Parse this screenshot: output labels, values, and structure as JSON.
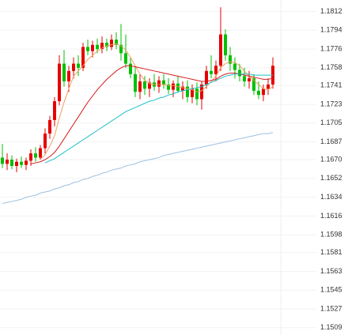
{
  "chart_data": {
    "type": "candlestick",
    "up_color": "#e60000",
    "down_color": "#00c000",
    "grid": true,
    "ylim": [
      1.1502,
      1.1823
    ],
    "yticks": [
      1.1812,
      1.1794,
      1.1776,
      1.1758,
      1.1741,
      1.1723,
      1.1705,
      1.1687,
      {
        "value": 1.167,
        "label": "1.1670"
      },
      1.1652,
      1.1634,
      1.1616,
      1.1598,
      1.1581,
      1.1563,
      1.1545,
      1.1527,
      1.1509
    ],
    "ohlc": [
      [
        1.1672,
        1.1685,
        1.1662,
        1.1666
      ],
      [
        1.1666,
        1.1676,
        1.166,
        1.167
      ],
      [
        1.167,
        1.1674,
        1.1661,
        1.1664
      ],
      [
        1.1664,
        1.1671,
        1.1658,
        1.1668
      ],
      [
        1.1668,
        1.1673,
        1.1662,
        1.1665
      ],
      [
        1.1665,
        1.1672,
        1.166,
        1.1669
      ],
      [
        1.1669,
        1.168,
        1.1664,
        1.1676
      ],
      [
        1.1676,
        1.1682,
        1.1668,
        1.1672
      ],
      [
        1.1672,
        1.1684,
        1.167,
        1.1681
      ],
      [
        1.1681,
        1.17,
        1.1676,
        1.1695
      ],
      [
        1.1695,
        1.1712,
        1.169,
        1.1708
      ],
      [
        1.1708,
        1.173,
        1.1702,
        1.1726
      ],
      [
        1.1726,
        1.177,
        1.1722,
        1.1762
      ],
      [
        1.1762,
        1.1775,
        1.174,
        1.1745
      ],
      [
        1.1745,
        1.176,
        1.1735,
        1.1755
      ],
      [
        1.1755,
        1.1768,
        1.1748,
        1.1762
      ],
      [
        1.1762,
        1.177,
        1.175,
        1.1758
      ],
      [
        1.1758,
        1.1782,
        1.1755,
        1.1778
      ],
      [
        1.1778,
        1.1785,
        1.177,
        1.1774
      ],
      [
        1.1774,
        1.1784,
        1.1768,
        1.178
      ],
      [
        1.178,
        1.1786,
        1.1772,
        1.1776
      ],
      [
        1.1776,
        1.1788,
        1.1772,
        1.1782
      ],
      [
        1.1782,
        1.1786,
        1.1774,
        1.1778
      ],
      [
        1.1778,
        1.179,
        1.1775,
        1.1785
      ],
      [
        1.1785,
        1.1792,
        1.1776,
        1.178
      ],
      [
        1.178,
        1.18,
        1.1765,
        1.1772
      ],
      [
        1.1772,
        1.179,
        1.1758,
        1.1762
      ],
      [
        1.1762,
        1.1768,
        1.1748,
        1.1752
      ],
      [
        1.1752,
        1.176,
        1.173,
        1.1735
      ],
      [
        1.1735,
        1.1752,
        1.1728,
        1.1745
      ],
      [
        1.1745,
        1.175,
        1.1732,
        1.1738
      ],
      [
        1.1738,
        1.1748,
        1.173,
        1.1744
      ],
      [
        1.1744,
        1.1752,
        1.1736,
        1.174
      ],
      [
        1.174,
        1.175,
        1.1734,
        1.1746
      ],
      [
        1.1746,
        1.1752,
        1.1738,
        1.1742
      ],
      [
        1.1742,
        1.1748,
        1.1733,
        1.1737
      ],
      [
        1.1737,
        1.1746,
        1.173,
        1.1743
      ],
      [
        1.1743,
        1.175,
        1.1734,
        1.1736
      ],
      [
        1.1736,
        1.1745,
        1.1728,
        1.174
      ],
      [
        1.174,
        1.1746,
        1.1725,
        1.173
      ],
      [
        1.173,
        1.1742,
        1.1724,
        1.1738
      ],
      [
        1.1738,
        1.1744,
        1.1722,
        1.1728
      ],
      [
        1.1728,
        1.1745,
        1.1718,
        1.1742
      ],
      [
        1.1742,
        1.176,
        1.1738,
        1.1755
      ],
      [
        1.1755,
        1.177,
        1.1748,
        1.1752
      ],
      [
        1.1752,
        1.1765,
        1.1745,
        1.176
      ],
      [
        1.176,
        1.1816,
        1.1755,
        1.179
      ],
      [
        1.179,
        1.1795,
        1.1765,
        1.177
      ],
      [
        1.177,
        1.1778,
        1.1755,
        1.1762
      ],
      [
        1.1762,
        1.1768,
        1.1748,
        1.1756
      ],
      [
        1.1756,
        1.1762,
        1.1745,
        1.175
      ],
      [
        1.175,
        1.1758,
        1.174,
        1.1745
      ],
      [
        1.1745,
        1.1755,
        1.1738,
        1.1748
      ],
      [
        1.1748,
        1.1752,
        1.1732,
        1.1736
      ],
      [
        1.1736,
        1.1745,
        1.1728,
        1.1732
      ],
      [
        1.1732,
        1.1742,
        1.1726,
        1.1738
      ],
      [
        1.1738,
        1.1748,
        1.1732,
        1.1742
      ],
      [
        1.1742,
        1.1768,
        1.1738,
        1.176
      ]
    ],
    "series": [
      {
        "color": "#f0a060",
        "values": [
          null,
          null,
          null,
          null,
          null,
          null,
          null,
          null,
          1.167,
          1.1675,
          1.1683,
          1.1693,
          1.171,
          1.1725,
          1.1738,
          1.175,
          1.1755,
          1.176,
          1.1766,
          1.177,
          1.1774,
          1.1777,
          1.1779,
          1.178,
          1.1781,
          1.1779,
          1.1775,
          1.1768,
          1.176,
          1.1752,
          1.1746,
          1.1743,
          1.1742,
          1.1742,
          1.1742,
          1.1741,
          1.1741,
          1.174,
          1.1739,
          1.1738,
          1.1737,
          1.1735,
          1.1736,
          1.174,
          1.1745,
          1.175,
          1.1758,
          1.1762,
          1.1764,
          1.1763,
          1.176,
          1.1755,
          1.175,
          1.1746,
          1.1742,
          1.1738,
          1.1737,
          1.174
        ]
      },
      {
        "color": "#d42020",
        "values": [
          null,
          null,
          null,
          null,
          null,
          null,
          1.1666,
          1.1667,
          1.1668,
          1.167,
          1.1673,
          1.1677,
          1.1683,
          1.169,
          1.1697,
          1.1704,
          1.1711,
          1.1718,
          1.1725,
          1.1731,
          1.1737,
          1.1742,
          1.1747,
          1.1751,
          1.1755,
          1.1758,
          1.176,
          1.176,
          1.1759,
          1.1758,
          1.1757,
          1.1756,
          1.1755,
          1.1754,
          1.1753,
          1.1752,
          1.1751,
          1.175,
          1.1749,
          1.1748,
          1.1747,
          1.1746,
          1.1745,
          1.1745,
          1.1746,
          1.1747,
          1.175,
          1.1752,
          1.1753,
          1.1753,
          1.1752,
          1.1751,
          1.175,
          1.1749,
          1.1748,
          1.1747,
          1.1747,
          1.1748
        ]
      },
      {
        "color": "#20c0c8",
        "values": [
          null,
          null,
          null,
          null,
          null,
          null,
          null,
          null,
          null,
          1.1667,
          1.1669,
          1.1671,
          1.1674,
          1.1677,
          1.168,
          1.1683,
          1.1686,
          1.1689,
          1.1692,
          1.1695,
          1.1698,
          1.1701,
          1.1704,
          1.1707,
          1.171,
          1.1713,
          1.1716,
          1.1718,
          1.172,
          1.1722,
          1.1724,
          1.1726,
          1.1727,
          1.1729,
          1.173,
          1.1732,
          1.1733,
          1.1735,
          1.1736,
          1.1737,
          1.1738,
          1.1739,
          1.174,
          1.1742,
          1.1744,
          1.1746,
          1.1748,
          1.175,
          1.1751,
          1.1752,
          1.1752,
          1.1752,
          1.1752,
          1.1751,
          1.1751,
          1.1751,
          1.1751,
          1.1751
        ]
      },
      {
        "color": "#9cc0e0",
        "values": [
          1.1628,
          1.1629,
          1.163,
          1.1631,
          1.1632,
          1.1634,
          1.1635,
          1.1636,
          1.1638,
          1.1639,
          1.164,
          1.1642,
          1.1643,
          1.1645,
          1.1646,
          1.1648,
          1.1649,
          1.1651,
          1.1652,
          1.1654,
          1.1655,
          1.1657,
          1.1658,
          1.166,
          1.1661,
          1.1662,
          1.1664,
          1.1665,
          1.1666,
          1.1668,
          1.1669,
          1.167,
          1.1671,
          1.1672,
          1.1674,
          1.1675,
          1.1676,
          1.1677,
          1.1678,
          1.1679,
          1.168,
          1.1681,
          1.1682,
          1.1683,
          1.1684,
          1.1685,
          1.1686,
          1.1687,
          1.1688,
          1.1689,
          1.169,
          1.1691,
          1.1692,
          1.1693,
          1.1694,
          1.1695,
          1.1695,
          1.1696
        ]
      }
    ]
  }
}
